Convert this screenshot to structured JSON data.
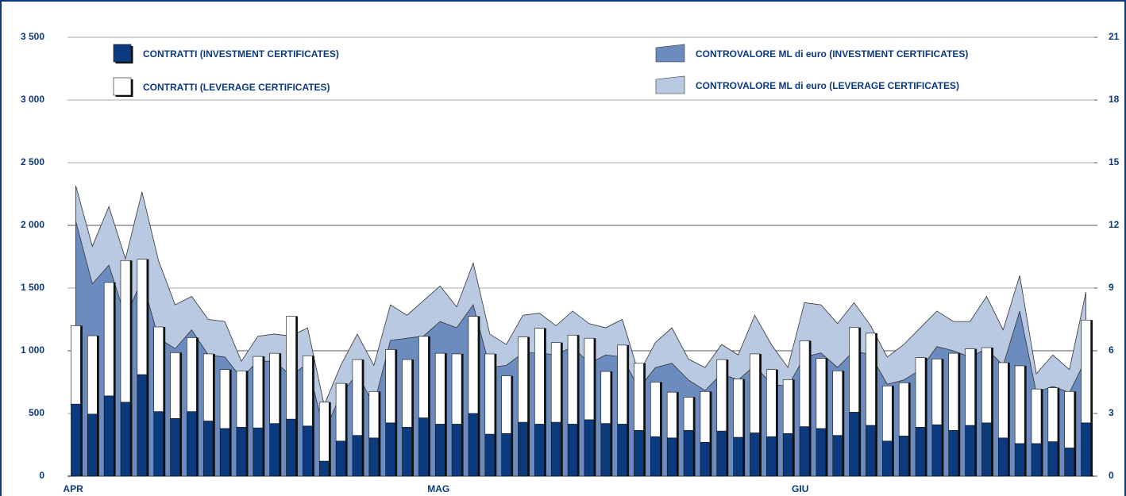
{
  "chart_data": {
    "type": "bar-area",
    "categories": [
      "APR",
      null,
      null,
      null,
      null,
      null,
      null,
      null,
      null,
      null,
      null,
      null,
      null,
      null,
      null,
      null,
      null,
      null,
      null,
      null,
      null,
      null,
      "MAG",
      null,
      null,
      null,
      null,
      null,
      null,
      null,
      null,
      null,
      null,
      null,
      null,
      null,
      null,
      null,
      null,
      null,
      null,
      null,
      null,
      null,
      "GIU",
      null,
      null,
      null,
      null,
      null,
      null,
      null,
      null,
      null,
      null,
      null,
      null,
      null,
      null,
      null,
      null,
      null
    ],
    "series": [
      {
        "name": "CONTRATTI (INVESTMENT CERTIFICATES)",
        "kind": "bar",
        "color": "#0b3a7e",
        "values": [
          575,
          495,
          640,
          590,
          810,
          515,
          460,
          515,
          440,
          380,
          390,
          385,
          420,
          455,
          400,
          120,
          280,
          325,
          305,
          425,
          390,
          465,
          415,
          415,
          500,
          335,
          340,
          430,
          415,
          430,
          415,
          450,
          420,
          415,
          365,
          315,
          305,
          365,
          270,
          360,
          310,
          345,
          315,
          340,
          395,
          380,
          325,
          510,
          405,
          280,
          320,
          390,
          410,
          365,
          405,
          425,
          305,
          260,
          260,
          275,
          225,
          425
        ]
      },
      {
        "name": "CONTRATTI (LEVERAGE CERTIFICATES)",
        "kind": "bar",
        "color": "#ffffff",
        "values": [
          625,
          625,
          905,
          1130,
          920,
          675,
          525,
          590,
          535,
          470,
          450,
          570,
          560,
          820,
          560,
          470,
          460,
          605,
          370,
          585,
          540,
          650,
          565,
          560,
          775,
          640,
          460,
          680,
          765,
          635,
          710,
          650,
          415,
          630,
          535,
          435,
          365,
          265,
          405,
          570,
          465,
          630,
          535,
          430,
          685,
          560,
          515,
          675,
          735,
          440,
          425,
          555,
          525,
          615,
          610,
          600,
          600,
          620,
          435,
          430,
          450,
          820
        ]
      },
      {
        "name": "CONTROVALORE ML di euro (INVESTMENT CERTIFICATES)",
        "kind": "area",
        "axis": "y2",
        "color": "#6c8cbf",
        "values": [
          12.2,
          9.2,
          10.1,
          7.6,
          9.4,
          6.6,
          6.1,
          7.0,
          5.8,
          5.7,
          4.7,
          5.5,
          5.5,
          4.8,
          5.4,
          2.1,
          3.9,
          4.9,
          3.4,
          6.5,
          6.6,
          6.7,
          7.4,
          7.1,
          8.2,
          5.2,
          5.3,
          5.9,
          5.9,
          5.8,
          6.2,
          5.4,
          5.8,
          5.7,
          4.2,
          5.2,
          5.4,
          4.6,
          4.1,
          4.9,
          4.6,
          5.3,
          4.4,
          4.3,
          5.7,
          5.9,
          5.2,
          6.0,
          5.8,
          4.4,
          4.6,
          5.1,
          6.2,
          6.0,
          5.7,
          6.1,
          5.3,
          7.9,
          4.0,
          4.3,
          4.0,
          5.6
        ]
      },
      {
        "name": "CONTROVALORE ML di euro (LEVERAGE CERTIFICATES)",
        "kind": "area",
        "axis": "y2",
        "color": "#b9c9e2",
        "values": [
          1.7,
          1.8,
          2.8,
          2.8,
          4.2,
          3.7,
          2.1,
          1.6,
          1.7,
          1.7,
          0.8,
          1.2,
          1.3,
          1.9,
          1.7,
          1.3,
          1.4,
          1.9,
          1.9,
          1.7,
          1.1,
          1.7,
          1.7,
          1.0,
          2.0,
          1.6,
          1.0,
          1.8,
          1.9,
          1.4,
          1.7,
          1.9,
          1.3,
          1.8,
          0.7,
          1.2,
          1.7,
          1.0,
          1.1,
          1.4,
          1.2,
          2.4,
          1.9,
          0.9,
          2.6,
          2.3,
          2.1,
          2.3,
          1.4,
          1.3,
          1.7,
          2.0,
          1.7,
          1.4,
          1.7,
          2.5,
          1.7,
          1.7,
          0.9,
          1.5,
          1.1,
          3.2
        ]
      }
    ],
    "ylim": [
      0,
      3500
    ],
    "yticks": [
      {
        "value": 0,
        "label": "0"
      },
      {
        "value": 500,
        "label": "500"
      },
      {
        "value": 1000,
        "label": "1 000"
      },
      {
        "value": 1500,
        "label": "1 500"
      },
      {
        "value": 2000,
        "label": "2 000"
      },
      {
        "value": 2500,
        "label": "2 500"
      },
      {
        "value": 3000,
        "label": "3 000"
      },
      {
        "value": 3500,
        "label": "3 500"
      }
    ],
    "y2lim": [
      0,
      21
    ],
    "y2ticks": [
      0,
      3,
      6,
      9,
      12,
      15,
      18,
      21
    ],
    "grid": true
  }
}
